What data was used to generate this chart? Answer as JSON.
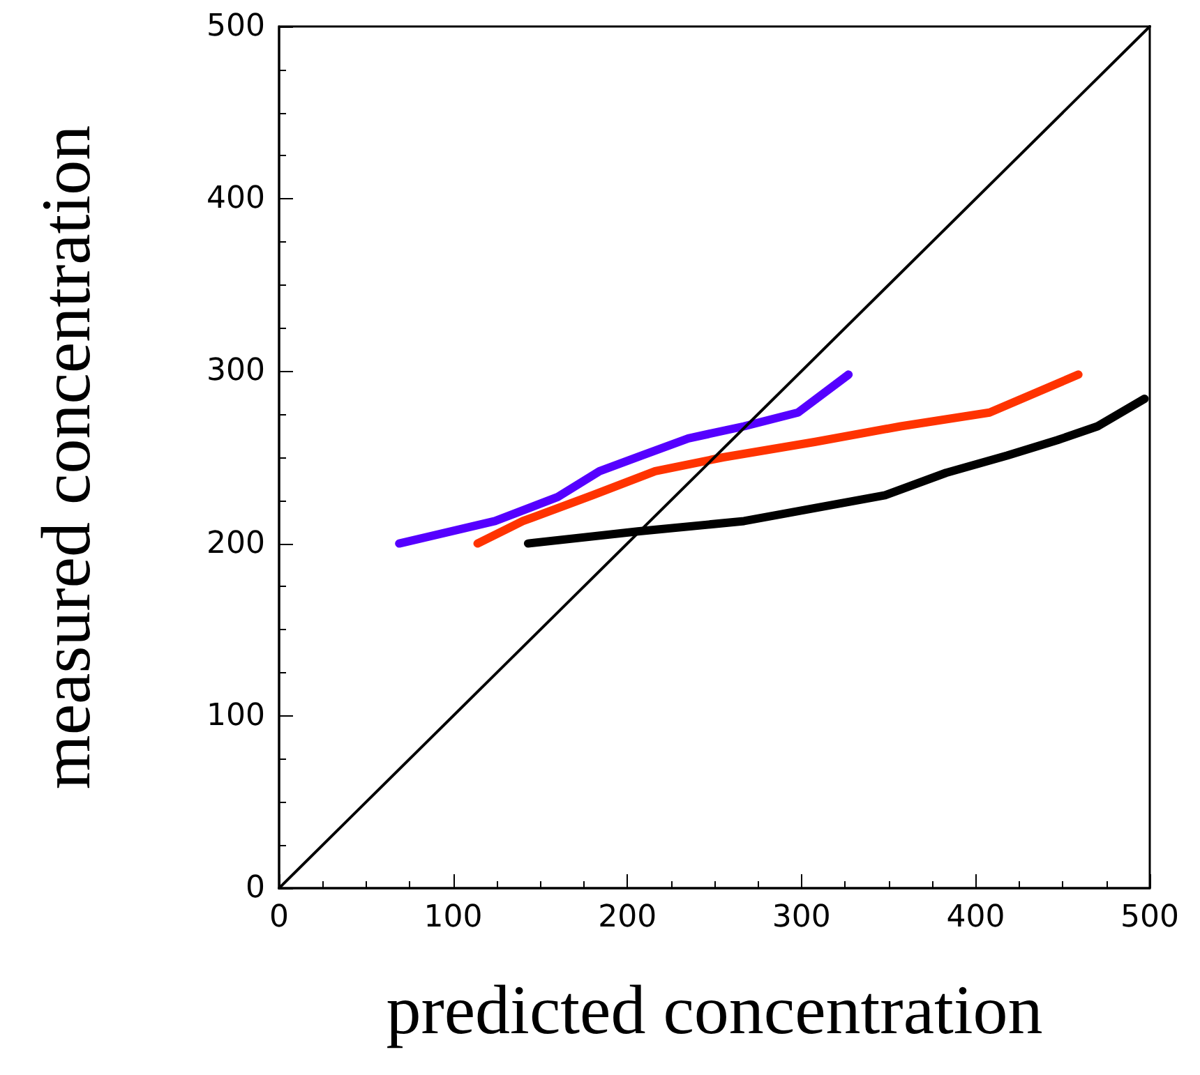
{
  "chart_data": {
    "type": "line",
    "xlabel": "predicted concentration",
    "ylabel": "measured concentration",
    "xlim": [
      0,
      500
    ],
    "ylim": [
      0,
      500
    ],
    "xticks": [
      0,
      100,
      200,
      300,
      400,
      500
    ],
    "yticks": [
      0,
      100,
      200,
      300,
      400,
      500
    ],
    "grid": false,
    "marker": "none",
    "series": [
      {
        "color": "#5500ff",
        "x": [
          69,
          124,
          160,
          184,
          208,
          235,
          267,
          298,
          327
        ],
        "values": [
          200,
          213,
          227,
          242,
          251,
          261,
          268,
          276,
          298
        ]
      },
      {
        "color": "#ff3300",
        "x": [
          114,
          140,
          180,
          216,
          255,
          308,
          357,
          408,
          459
        ],
        "values": [
          200,
          213,
          228,
          242,
          250,
          259,
          268,
          276,
          298
        ]
      },
      {
        "color": "#000000",
        "x": [
          143,
          206,
          267,
          348,
          383,
          418,
          447,
          470,
          497
        ],
        "values": [
          200,
          207,
          213,
          228,
          241,
          251,
          260,
          268,
          284
        ]
      },
      {
        "color": "#000000",
        "x": [
          0,
          500
        ],
        "values": [
          0,
          500
        ]
      }
    ]
  }
}
